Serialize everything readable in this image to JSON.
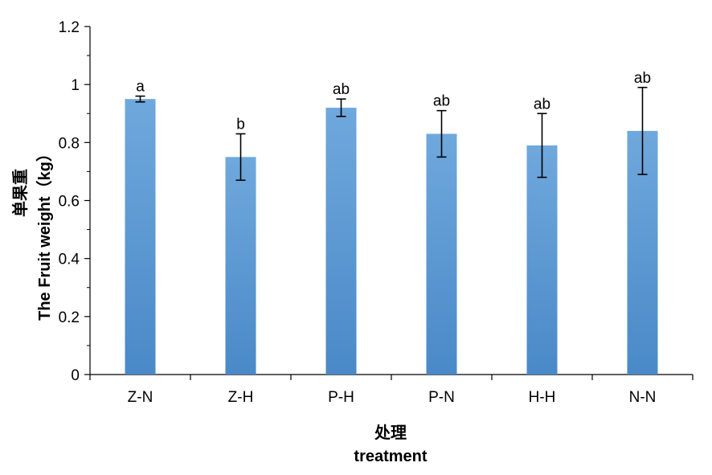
{
  "chart_data": {
    "type": "bar",
    "categories": [
      "Z-N",
      "Z-H",
      "P-H",
      "P-N",
      "H-H",
      "N-N"
    ],
    "values": [
      0.95,
      0.75,
      0.92,
      0.83,
      0.79,
      0.84
    ],
    "error_low": [
      0.94,
      0.67,
      0.89,
      0.75,
      0.68,
      0.69
    ],
    "error_high": [
      0.96,
      0.83,
      0.95,
      0.91,
      0.9,
      0.99
    ],
    "significance": [
      "a",
      "b",
      "ab",
      "ab",
      "ab",
      "ab"
    ],
    "ylabel_cn": "单果重",
    "ylabel_en": "The Fruit weight（kg）",
    "xlabel_cn": "处理",
    "xlabel_en": "treatment",
    "yticks": [
      "0",
      "0.2",
      "0.4",
      "0.6",
      "0.8",
      "1",
      "1.2"
    ],
    "ylim": [
      0,
      1.2
    ],
    "grid": false,
    "bar_color": "#5B9BD5"
  }
}
